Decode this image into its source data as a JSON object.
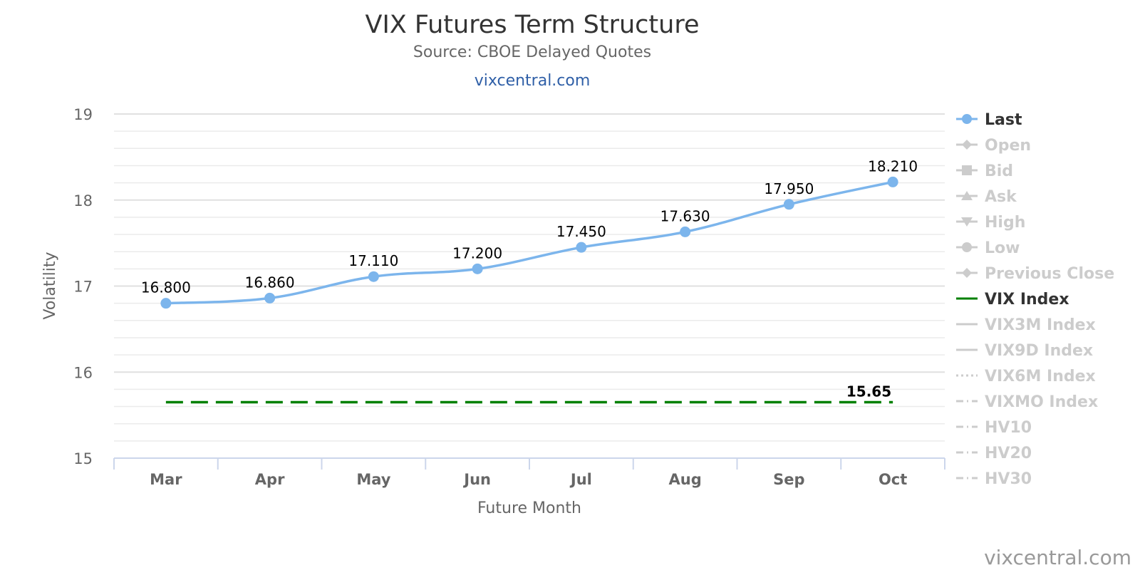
{
  "chart_data": {
    "type": "line",
    "title": "VIX Futures Term Structure",
    "subtitle": "Source: CBOE Delayed Quotes",
    "link": "vixcentral.com",
    "watermark": "vixcentral.com",
    "xlabel": "Future Month",
    "ylabel": "Volatility",
    "categories": [
      "Mar",
      "Apr",
      "May",
      "Jun",
      "Jul",
      "Aug",
      "Sep",
      "Oct"
    ],
    "ylim": [
      15,
      19
    ],
    "yticks": [
      "15",
      "16",
      "17",
      "18",
      "19"
    ],
    "grid": true,
    "series": [
      {
        "name": "Last",
        "values": [
          16.8,
          16.86,
          17.11,
          17.2,
          17.45,
          17.63,
          17.95,
          18.21
        ],
        "labels": [
          "16.800",
          "16.860",
          "17.110",
          "17.200",
          "17.450",
          "17.630",
          "17.950",
          "18.210"
        ],
        "color": "#7cb5ec"
      },
      {
        "name": "VIX Index",
        "value": 15.65,
        "label": "15.65",
        "color": "#008000",
        "dash": "dashed"
      }
    ],
    "legend": {
      "placement": "right",
      "items": [
        {
          "name": "Last",
          "active": true,
          "marker": "circle",
          "line": "solid"
        },
        {
          "name": "Open",
          "active": false,
          "marker": "diamond",
          "line": "solid"
        },
        {
          "name": "Bid",
          "active": false,
          "marker": "square",
          "line": "solid"
        },
        {
          "name": "Ask",
          "active": false,
          "marker": "triangle",
          "line": "solid"
        },
        {
          "name": "High",
          "active": false,
          "marker": "triangle-down",
          "line": "solid"
        },
        {
          "name": "Low",
          "active": false,
          "marker": "circle",
          "line": "solid"
        },
        {
          "name": "Previous Close",
          "active": false,
          "marker": "diamond",
          "line": "solid"
        },
        {
          "name": "VIX Index",
          "active": true,
          "marker": "none",
          "line": "solid"
        },
        {
          "name": "VIX3M Index",
          "active": false,
          "marker": "none",
          "line": "solid"
        },
        {
          "name": "VIX9D Index",
          "active": false,
          "marker": "none",
          "line": "solid"
        },
        {
          "name": "VIX6M Index",
          "active": false,
          "marker": "none",
          "line": "dotted"
        },
        {
          "name": "VIXMO Index",
          "active": false,
          "marker": "none",
          "line": "dashdot"
        },
        {
          "name": "HV10",
          "active": false,
          "marker": "none",
          "line": "dashdot"
        },
        {
          "name": "HV20",
          "active": false,
          "marker": "none",
          "line": "dashdot"
        },
        {
          "name": "HV30",
          "active": false,
          "marker": "none",
          "line": "dashdot"
        }
      ]
    },
    "colors": {
      "active_text": "#333333",
      "inactive": "#cccccc",
      "grid": "#e6e6e6",
      "axis": "#ccd6eb"
    }
  }
}
